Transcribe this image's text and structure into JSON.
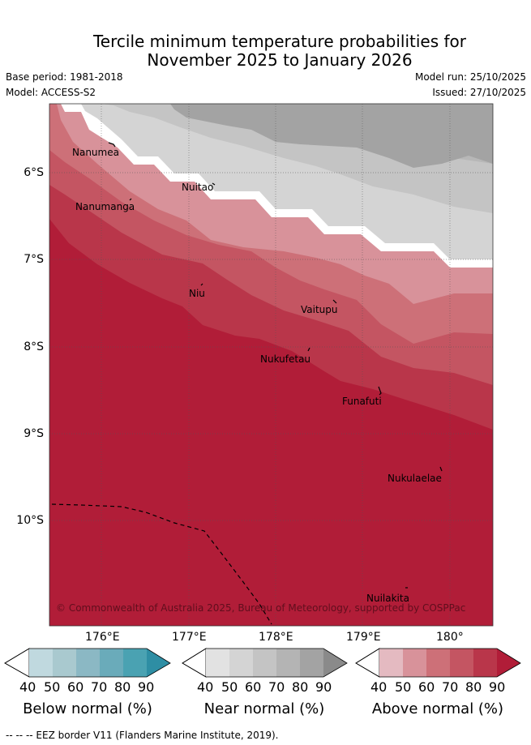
{
  "title": {
    "line1": "Tercile minimum temperature probabilities for",
    "line2": "November 2025 to January 2026"
  },
  "meta": {
    "base_period": "Base period: 1981-2018",
    "model": "Model: ACCESS-S2",
    "model_run": "Model run: 25/10/2025",
    "issued": "Issued: 27/10/2025"
  },
  "axes": {
    "lat_labels": [
      "6°S",
      "7°S",
      "8°S",
      "9°S",
      "10°S"
    ],
    "lon_labels": [
      "176°E",
      "177°E",
      "178°E",
      "179°E",
      "180°"
    ]
  },
  "places": [
    "Nanumea",
    "Nuitao",
    "Nanumanga",
    "Niu",
    "Vaitupu",
    "Nukufetau",
    "Funafuti",
    "Nukulaelae",
    "Nuilakita"
  ],
  "copyright": "© Commonwealth of Australia 2025, Bureau of Meteorology, supported by COSPPac",
  "colorbars": [
    {
      "title": "Below normal (%)",
      "ticks": [
        "40",
        "50",
        "60",
        "70",
        "80",
        "90"
      ],
      "colors": [
        "#ffffff",
        "#c0d9df",
        "#a9c9cf",
        "#8bb8c4",
        "#6aabba",
        "#4aa2b2",
        "#2e8ea4"
      ]
    },
    {
      "title": "Near normal (%)",
      "ticks": [
        "40",
        "50",
        "60",
        "70",
        "80",
        "90"
      ],
      "colors": [
        "#ffffff",
        "#e2e2e2",
        "#d4d4d4",
        "#c4c4c4",
        "#b4b4b4",
        "#a3a3a3",
        "#8a8a8a"
      ]
    },
    {
      "title": "Above normal (%)",
      "ticks": [
        "40",
        "50",
        "60",
        "70",
        "80",
        "90"
      ],
      "colors": [
        "#ffffff",
        "#e4bac1",
        "#d8929a",
        "#cd7078",
        "#c45562",
        "#b9364a",
        "#b11d38"
      ]
    }
  ],
  "eez_note": "--  --  -- EEZ border V11 (Flanders Marine Institute, 2019).",
  "map_colors": {
    "near_80": "#a3a3a3",
    "near_70": "#b7b7b7",
    "near_60": "#c4c4c4",
    "near_50": "#d4d4d4",
    "white": "#ffffff",
    "above_50": "#d8929a",
    "above_60": "#cd7078",
    "above_70": "#c45562",
    "above_80": "#b9364a",
    "above_90": "#b11d38"
  }
}
